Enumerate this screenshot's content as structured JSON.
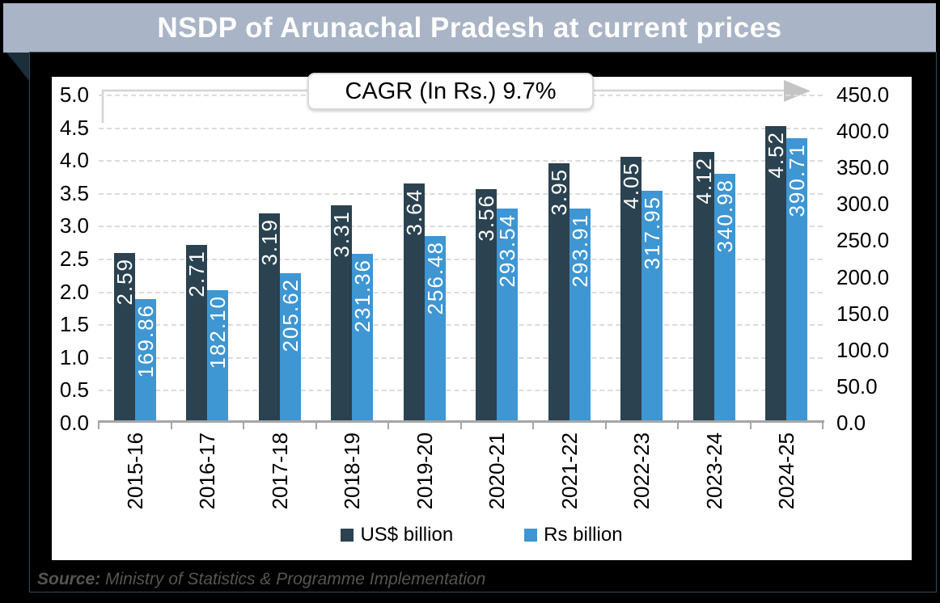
{
  "title": "NSDP of Arunachal Pradesh at current prices",
  "annotation": {
    "cagr_label": "CAGR (In Rs.) 9.7%"
  },
  "source": {
    "prefix": "Source:",
    "text": " Ministry of Statistics & Programme Implementation"
  },
  "legend": [
    {
      "label": "US$ billion",
      "color": "#2b4250"
    },
    {
      "label": "Rs billion",
      "color": "#3e96d3"
    }
  ],
  "colors": {
    "banner_bg": "#a9b4c6",
    "banner_text": "#ffffff",
    "us_bar": "#2b4250",
    "rs_bar": "#3e96d3",
    "gridline": "#dcdcdc",
    "axis": "#a6a6a6",
    "arrow": "#d4d4d4",
    "arrowhead": "#c4c4c4",
    "source_text": "#555555"
  },
  "chart_data": {
    "type": "bar",
    "title": "NSDP of Arunachal Pradesh at current prices",
    "categories": [
      "2015-16",
      "2016-17",
      "2017-18",
      "2018-19",
      "2019-20",
      "2020-21",
      "2021-22",
      "2022-23",
      "2023-24",
      "2024-25"
    ],
    "series": [
      {
        "name": "US$ billion",
        "axis": "left",
        "color": "#2b4250",
        "values": [
          2.59,
          2.71,
          3.19,
          3.31,
          3.64,
          3.56,
          3.95,
          4.05,
          4.12,
          4.52
        ],
        "labels": [
          "2.59",
          "2.71",
          "3.19",
          "3.31",
          "3.64",
          "3.56",
          "3.95",
          "4.05",
          "4.12",
          "4.52"
        ]
      },
      {
        "name": "Rs billion",
        "axis": "right",
        "color": "#3e96d3",
        "values": [
          169.86,
          182.1,
          205.62,
          231.36,
          256.48,
          293.54,
          293.91,
          317.95,
          340.98,
          390.71
        ],
        "labels": [
          "169.86",
          "182.10",
          "205.62",
          "231.36",
          "256.48",
          "293.54",
          "293.91",
          "317.95",
          "340.98",
          "390.71"
        ]
      }
    ],
    "left_axis": {
      "min": 0,
      "max": 5,
      "step": 0.5,
      "ticks": [
        "5.0",
        "4.5",
        "4.0",
        "3.5",
        "3.0",
        "2.5",
        "2.0",
        "1.5",
        "1.0",
        "0.5",
        "0.0"
      ]
    },
    "right_axis": {
      "min": 0,
      "max": 450,
      "step": 50,
      "ticks": [
        "450.0",
        "400.0",
        "350.0",
        "300.0",
        "250.0",
        "200.0",
        "150.0",
        "100.0",
        "50.0",
        "0.0"
      ]
    },
    "grid": "dashed-horizontal",
    "legend_position": "bottom",
    "annotation": "CAGR (In Rs.) 9.7%"
  }
}
